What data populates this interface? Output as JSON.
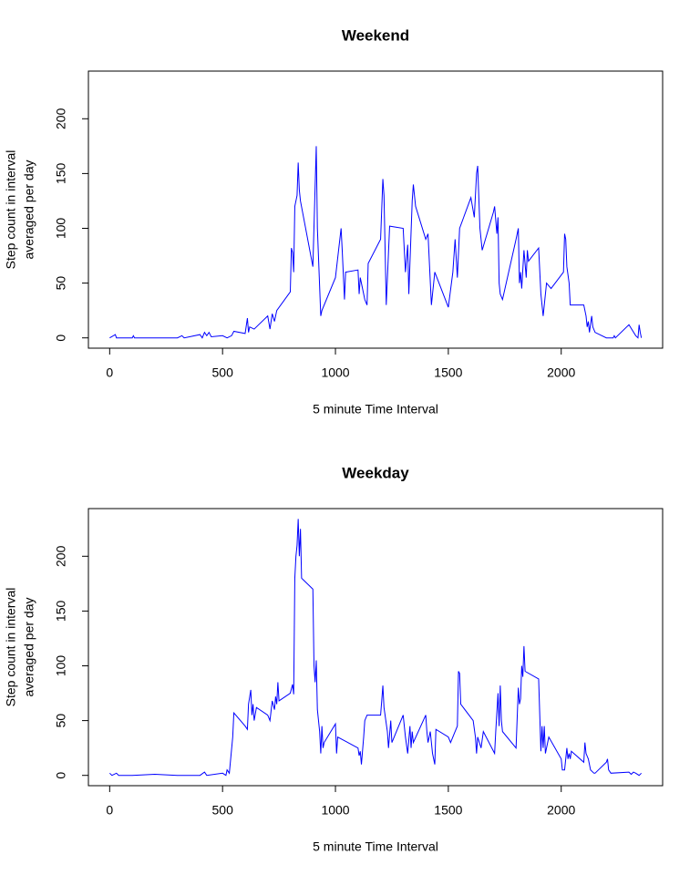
{
  "chart_data": [
    {
      "type": "line",
      "title": "Weekend",
      "xlabel": "5 minute Time Interval",
      "ylabel": [
        "Step count in interval",
        "averaged per day"
      ],
      "color": "#0000ff",
      "xlim": [
        -94.2,
        2449.2
      ],
      "ylim": [
        -9.4,
        243.5
      ],
      "xticks": [
        0,
        500,
        1000,
        1500,
        2000
      ],
      "yticks": [
        0,
        50,
        100,
        150,
        200
      ],
      "x": [
        0,
        25,
        30,
        100,
        105,
        110,
        300,
        320,
        330,
        400,
        410,
        420,
        430,
        440,
        450,
        500,
        520,
        540,
        550,
        600,
        610,
        615,
        620,
        640,
        700,
        710,
        720,
        730,
        740,
        800,
        805,
        810,
        815,
        820,
        830,
        835,
        840,
        845,
        900,
        915,
        920,
        935,
        940,
        1000,
        1025,
        1030,
        1040,
        1045,
        1100,
        1105,
        1110,
        1120,
        1130,
        1140,
        1145,
        1200,
        1210,
        1215,
        1225,
        1240,
        1300,
        1310,
        1320,
        1325,
        1340,
        1345,
        1355,
        1400,
        1410,
        1425,
        1430,
        1440,
        1500,
        1520,
        1530,
        1540,
        1550,
        1600,
        1615,
        1625,
        1630,
        1640,
        1650,
        1700,
        1705,
        1715,
        1720,
        1725,
        1730,
        1740,
        1800,
        1810,
        1815,
        1820,
        1825,
        1835,
        1845,
        1850,
        1855,
        1900,
        1910,
        1920,
        1935,
        1955,
        2010,
        2015,
        2020,
        2025,
        2035,
        2040,
        2100,
        2110,
        2115,
        2120,
        2125,
        2135,
        2140,
        2150,
        2200,
        2230,
        2235,
        2240,
        2300,
        2330,
        2340,
        2345,
        2350,
        2355
      ],
      "values": [
        0,
        3,
        0,
        0,
        2,
        0,
        0,
        2,
        0,
        3,
        0,
        5,
        2,
        5,
        1,
        2,
        0,
        2,
        6,
        4,
        18,
        5,
        10,
        8,
        20,
        8,
        22,
        15,
        25,
        42,
        82,
        78,
        60,
        120,
        130,
        160,
        135,
        125,
        65,
        175,
        100,
        20,
        25,
        55,
        100,
        80,
        35,
        60,
        62,
        40,
        55,
        45,
        35,
        30,
        68,
        90,
        145,
        130,
        30,
        102,
        100,
        60,
        85,
        40,
        125,
        140,
        120,
        90,
        95,
        30,
        40,
        60,
        28,
        60,
        90,
        55,
        100,
        128,
        110,
        150,
        157,
        100,
        80,
        115,
        120,
        95,
        110,
        50,
        40,
        35,
        90,
        100,
        50,
        60,
        45,
        80,
        55,
        80,
        70,
        82,
        40,
        20,
        50,
        45,
        60,
        95,
        90,
        65,
        50,
        30,
        30,
        20,
        10,
        15,
        5,
        20,
        10,
        5,
        0,
        0,
        2,
        0,
        12,
        2,
        0,
        12,
        5,
        0
      ]
    },
    {
      "type": "line",
      "title": "Weekday",
      "xlabel": "5 minute Time Interval",
      "ylabel": [
        "Step count in interval",
        "averaged per day"
      ],
      "color": "#0000ff",
      "xlim": [
        -94.2,
        2449.2
      ],
      "ylim": [
        -9.4,
        243.5
      ],
      "xticks": [
        0,
        500,
        1000,
        1500,
        2000
      ],
      "yticks": [
        0,
        50,
        100,
        150,
        200
      ],
      "x": [
        0,
        10,
        30,
        40,
        100,
        200,
        300,
        400,
        420,
        430,
        500,
        515,
        520,
        530,
        545,
        550,
        600,
        610,
        615,
        625,
        630,
        635,
        640,
        650,
        700,
        710,
        720,
        730,
        735,
        740,
        745,
        750,
        800,
        810,
        815,
        820,
        825,
        830,
        835,
        840,
        845,
        850,
        900,
        905,
        910,
        915,
        920,
        930,
        935,
        940,
        945,
        950,
        1000,
        1005,
        1010,
        1100,
        1105,
        1110,
        1115,
        1125,
        1130,
        1140,
        1200,
        1205,
        1210,
        1215,
        1230,
        1235,
        1245,
        1250,
        1300,
        1310,
        1320,
        1330,
        1335,
        1340,
        1345,
        1400,
        1405,
        1410,
        1420,
        1430,
        1440,
        1445,
        1500,
        1510,
        1530,
        1540,
        1545,
        1550,
        1555,
        1610,
        1620,
        1625,
        1630,
        1645,
        1655,
        1705,
        1710,
        1720,
        1725,
        1730,
        1735,
        1740,
        1800,
        1810,
        1815,
        1820,
        1825,
        1830,
        1835,
        1840,
        1900,
        1910,
        1915,
        1920,
        1925,
        1930,
        1945,
        2000,
        2005,
        2015,
        2025,
        2030,
        2035,
        2040,
        2045,
        2100,
        2105,
        2110,
        2120,
        2130,
        2145,
        2150,
        2200,
        2205,
        2210,
        2220,
        2300,
        2310,
        2320,
        2330,
        2345,
        2355
      ],
      "values": [
        2,
        0,
        2,
        0,
        0,
        1,
        0,
        0,
        3,
        0,
        2,
        0,
        5,
        2,
        35,
        57,
        45,
        42,
        65,
        78,
        55,
        65,
        50,
        62,
        55,
        50,
        68,
        60,
        72,
        65,
        85,
        68,
        75,
        83,
        74,
        180,
        200,
        210,
        234,
        200,
        225,
        180,
        170,
        100,
        85,
        105,
        60,
        40,
        20,
        45,
        25,
        30,
        47,
        20,
        35,
        25,
        18,
        22,
        10,
        35,
        50,
        55,
        55,
        68,
        82,
        62,
        40,
        25,
        50,
        30,
        55,
        35,
        20,
        45,
        25,
        40,
        30,
        55,
        40,
        30,
        40,
        20,
        10,
        42,
        35,
        30,
        40,
        45,
        95,
        93,
        65,
        50,
        35,
        20,
        35,
        25,
        40,
        20,
        40,
        75,
        45,
        82,
        50,
        40,
        25,
        80,
        65,
        70,
        100,
        90,
        118,
        95,
        88,
        22,
        45,
        25,
        45,
        20,
        35,
        15,
        5,
        5,
        25,
        15,
        20,
        15,
        22,
        12,
        30,
        20,
        15,
        5,
        2,
        2,
        12,
        15,
        5,
        2,
        3,
        1,
        3,
        2,
        0,
        2
      ]
    }
  ]
}
